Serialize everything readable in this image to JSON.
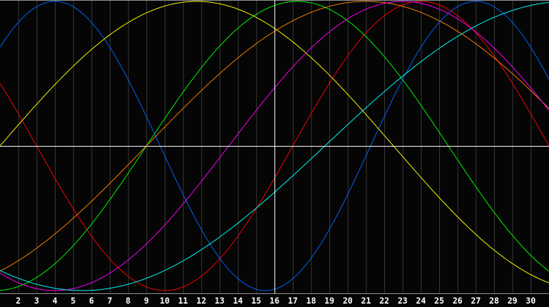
{
  "chart_data": {
    "type": "line",
    "title": "",
    "xlabel": "",
    "ylabel": "",
    "x_ticks": [
      2,
      3,
      4,
      5,
      6,
      7,
      8,
      9,
      10,
      11,
      12,
      13,
      14,
      15,
      16,
      17,
      18,
      19,
      20,
      21,
      22,
      23,
      24,
      25,
      26,
      27,
      28,
      29,
      30
    ],
    "xlim": [
      1,
      31
    ],
    "ylim": [
      -1,
      1
    ],
    "marker_day": 16,
    "grid": true,
    "series": [
      {
        "color": "#ff0000",
        "period_days": 28,
        "peak_day": 24
      },
      {
        "color": "#00ff00",
        "period_days": 33,
        "peak_day": 17.25
      },
      {
        "color": "#0066ff",
        "period_days": 23,
        "peak_day": 4
      },
      {
        "color": "#ffff00",
        "period_days": 43,
        "peak_day": 11.75
      },
      {
        "color": "#ff8000",
        "period_days": 48,
        "peak_day": 21
      },
      {
        "color": "#ff00ff",
        "period_days": 38,
        "peak_day": 23
      },
      {
        "color": "#00ffff",
        "period_days": 53,
        "peak_day": 32
      }
    ]
  },
  "colors": {
    "background": "#050505",
    "grid": "#3a3a3a",
    "axis": "#9a9a9a",
    "center": "#ffffff"
  }
}
